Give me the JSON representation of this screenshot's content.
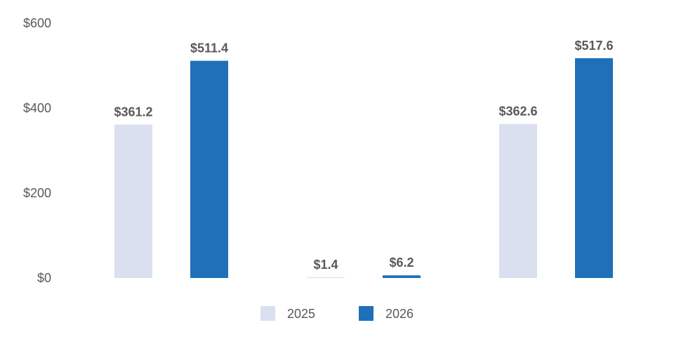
{
  "chart_data": {
    "type": "bar",
    "categories": [
      "",
      "",
      ""
    ],
    "series": [
      {
        "name": "2025",
        "color": "#dae0f0",
        "values": [
          361.2,
          1.4,
          362.6
        ],
        "labels": [
          "$361.2",
          "$1.4",
          "$362.6"
        ]
      },
      {
        "name": "2026",
        "color": "#1f70b8",
        "values": [
          511.4,
          6.2,
          517.6
        ],
        "labels": [
          "$511.4",
          "$6.2",
          "$517.6"
        ]
      }
    ],
    "yticks": [
      {
        "value": 0,
        "label": "$0"
      },
      {
        "value": 200,
        "label": "$200"
      },
      {
        "value": 400,
        "label": "$400"
      },
      {
        "value": 600,
        "label": "$600"
      }
    ],
    "ylim": [
      0,
      600
    ],
    "grid": false,
    "legend_position": "bottom",
    "title": "",
    "xlabel": "",
    "ylabel": ""
  }
}
